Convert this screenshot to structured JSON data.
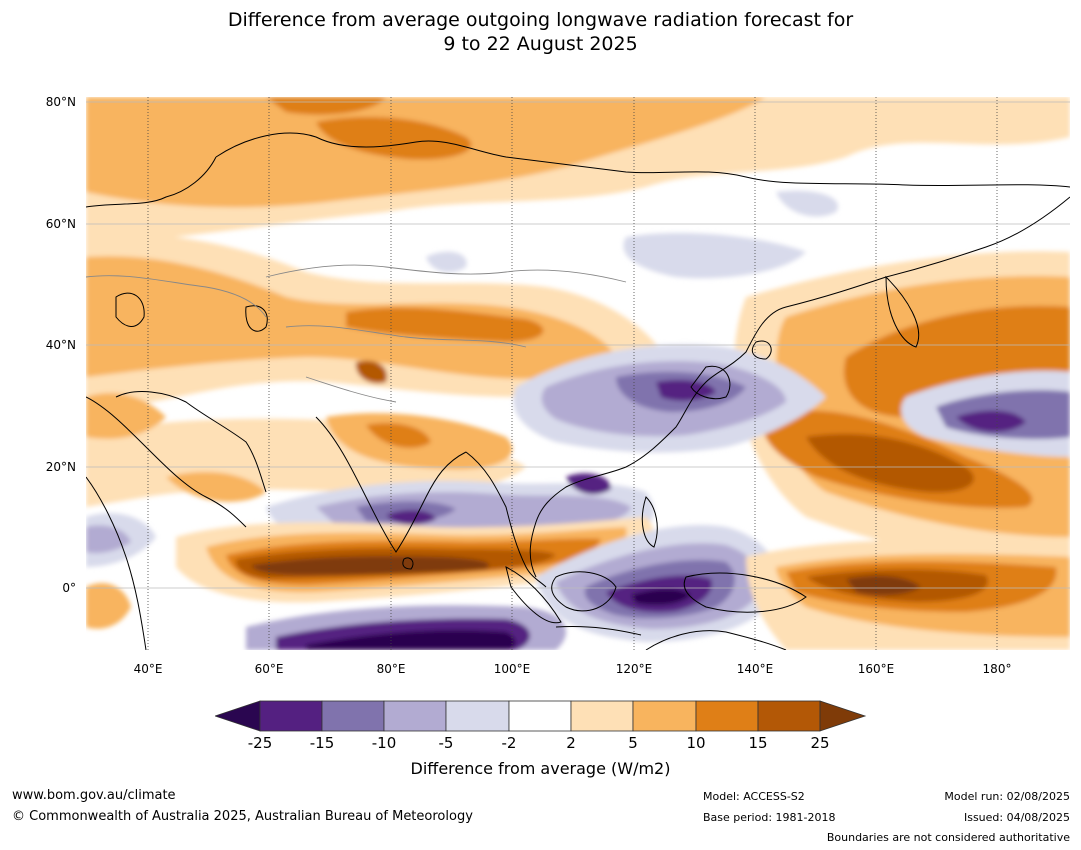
{
  "title_line1": "Difference from average outgoing longwave radiation forecast for",
  "title_line2": "9 to 22 August 2025",
  "map": {
    "lat_labels": [
      "80°N",
      "60°N",
      "40°N",
      "20°N",
      "0°"
    ],
    "lon_labels": [
      "40°E",
      "60°E",
      "80°E",
      "100°E",
      "120°E",
      "140°E",
      "160°E",
      "180°"
    ]
  },
  "legend": {
    "ticks": [
      "-25",
      "-15",
      "-10",
      "-5",
      "-2",
      "2",
      "5",
      "10",
      "15",
      "25"
    ],
    "colors": [
      "#2a0650",
      "#542081",
      "#8073ad",
      "#b2abd2",
      "#d8daeb",
      "#ffffff",
      "#fee0b6",
      "#f8b45e",
      "#df7f17",
      "#b35806",
      "#7f3b08"
    ],
    "label": "Difference from average (W/m2)"
  },
  "footer": {
    "website": "www.bom.gov.au/climate",
    "copyright": "© Commonwealth of Australia 2025, Australian Bureau of Meteorology",
    "model": "Model: ACCESS-S2",
    "base_period": "Base period: 1981-2018",
    "model_run": "Model run: 02/08/2025",
    "issued": "Issued: 04/08/2025",
    "disclaimer": "Boundaries are not considered authoritative"
  }
}
